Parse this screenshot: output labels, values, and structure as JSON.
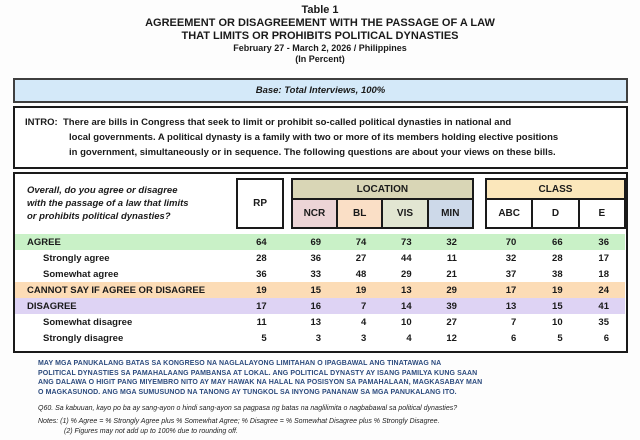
{
  "title": {
    "table_label": "Table 1",
    "line1": "AGREEMENT OR DISAGREEMENT WITH THE PASSAGE OF A LAW",
    "line2": "THAT LIMITS OR PROHIBITS POLITICAL DYNASTIES",
    "date_line": "February 27 - March 2, 2026 / Philippines",
    "unit_line": "(In Percent)"
  },
  "base_bar": {
    "text": "Base: Total Interviews, 100%"
  },
  "intro": {
    "label": "INTRO:",
    "lines": [
      "There are bills in Congress that seek to limit or prohibit so-called political dynasties in national and",
      "local governments. A political dynasty is a family with two or more of its members holding elective positions",
      "in government, simultaneously or in sequence. The following questions are about your views on these bills."
    ]
  },
  "question": {
    "lines": [
      "Overall, do you agree or disagree",
      "with the passage of a law that limits",
      "or prohibits political dynasties?"
    ]
  },
  "columns": {
    "rp": "RP",
    "location_label": "LOCATION",
    "location": [
      "NCR",
      "BL",
      "VIS",
      "MIN"
    ],
    "class_label": "CLASS",
    "class": [
      "ABC",
      "D",
      "E"
    ]
  },
  "table": {
    "rows": [
      {
        "label": "AGREE",
        "level": "major",
        "band": "green",
        "values": [
          64,
          69,
          74,
          73,
          32,
          70,
          66,
          36
        ]
      },
      {
        "label": "Strongly agree",
        "level": "sub",
        "band": null,
        "values": [
          28,
          36,
          27,
          44,
          11,
          32,
          28,
          17
        ]
      },
      {
        "label": "Somewhat agree",
        "level": "sub",
        "band": null,
        "values": [
          36,
          33,
          48,
          29,
          21,
          37,
          38,
          18
        ]
      },
      {
        "label": "CANNOT SAY IF AGREE OR DISAGREE",
        "level": "major",
        "band": "orange",
        "values": [
          19,
          15,
          19,
          13,
          29,
          17,
          19,
          24
        ]
      },
      {
        "label": "DISAGREE",
        "level": "major",
        "band": "purple",
        "values": [
          17,
          16,
          7,
          14,
          39,
          13,
          15,
          41
        ]
      },
      {
        "label": "Somewhat disagree",
        "level": "sub",
        "band": null,
        "values": [
          11,
          13,
          4,
          10,
          27,
          7,
          10,
          35
        ]
      },
      {
        "label": "Strongly disagree",
        "level": "sub",
        "band": null,
        "values": [
          5,
          3,
          3,
          4,
          12,
          6,
          5,
          6
        ]
      }
    ]
  },
  "footer": {
    "tagalog_lines": [
      "MAY MGA PANUKALANG BATAS SA KONGRESO NA NAGLALAYONG LIMITAHAN O IPAGBAWAL ANG TINATAWAG NA",
      "POLITICAL DYNASTIES SA PAMAHALAANG PAMBANSA AT LOKAL. ANG POLITICAL DYNASTY AY ISANG PAMILYA KUNG SAAN",
      "ANG DALAWA O HIGIT PANG MIYEMBRO NITO AY MAY HAWAK NA HALAL NA POSISYON SA PAMAHALAAN, MAGKASABAY MAN",
      "O MAGKASUNOD. ANG MGA SUMUSUNOD NA TANONG AY TUNGKOL SA INYONG PANANAW SA MGA PANUKALANG ITO."
    ],
    "q_line": "Q60.   Sa kabuuan, kayo po ba ay sang-ayon o hindi sang-ayon sa pagpasa ng batas na naglilimita o nagbabawal sa political dynasties?",
    "notes_line1": "Notes: (1) % Agree = % Strongly Agree plus % Somewhat Agree; % Disagree = % Somewhat Disagree plus % Strongly Disagree.",
    "notes_line2": "(2) Figures may not add up to 100% due to rounding off."
  },
  "colors": {
    "base_bar_bg": "#d4e9f9",
    "location_hdr_bg": "#d9d6b6",
    "class_hdr_bg": "#fbe7bb",
    "ncr_bg": "#ecd4d6",
    "bl_bg": "#fadfc6",
    "vis_bg": "#e2e6d2",
    "min_bg": "#cdd9e9",
    "agree_band_bg": "#c9f1c7",
    "cannot_say_band_bg": "#fcdcb6",
    "disagree_band_bg": "#ded3f4",
    "tagalog_text": "#2b4a7d"
  }
}
